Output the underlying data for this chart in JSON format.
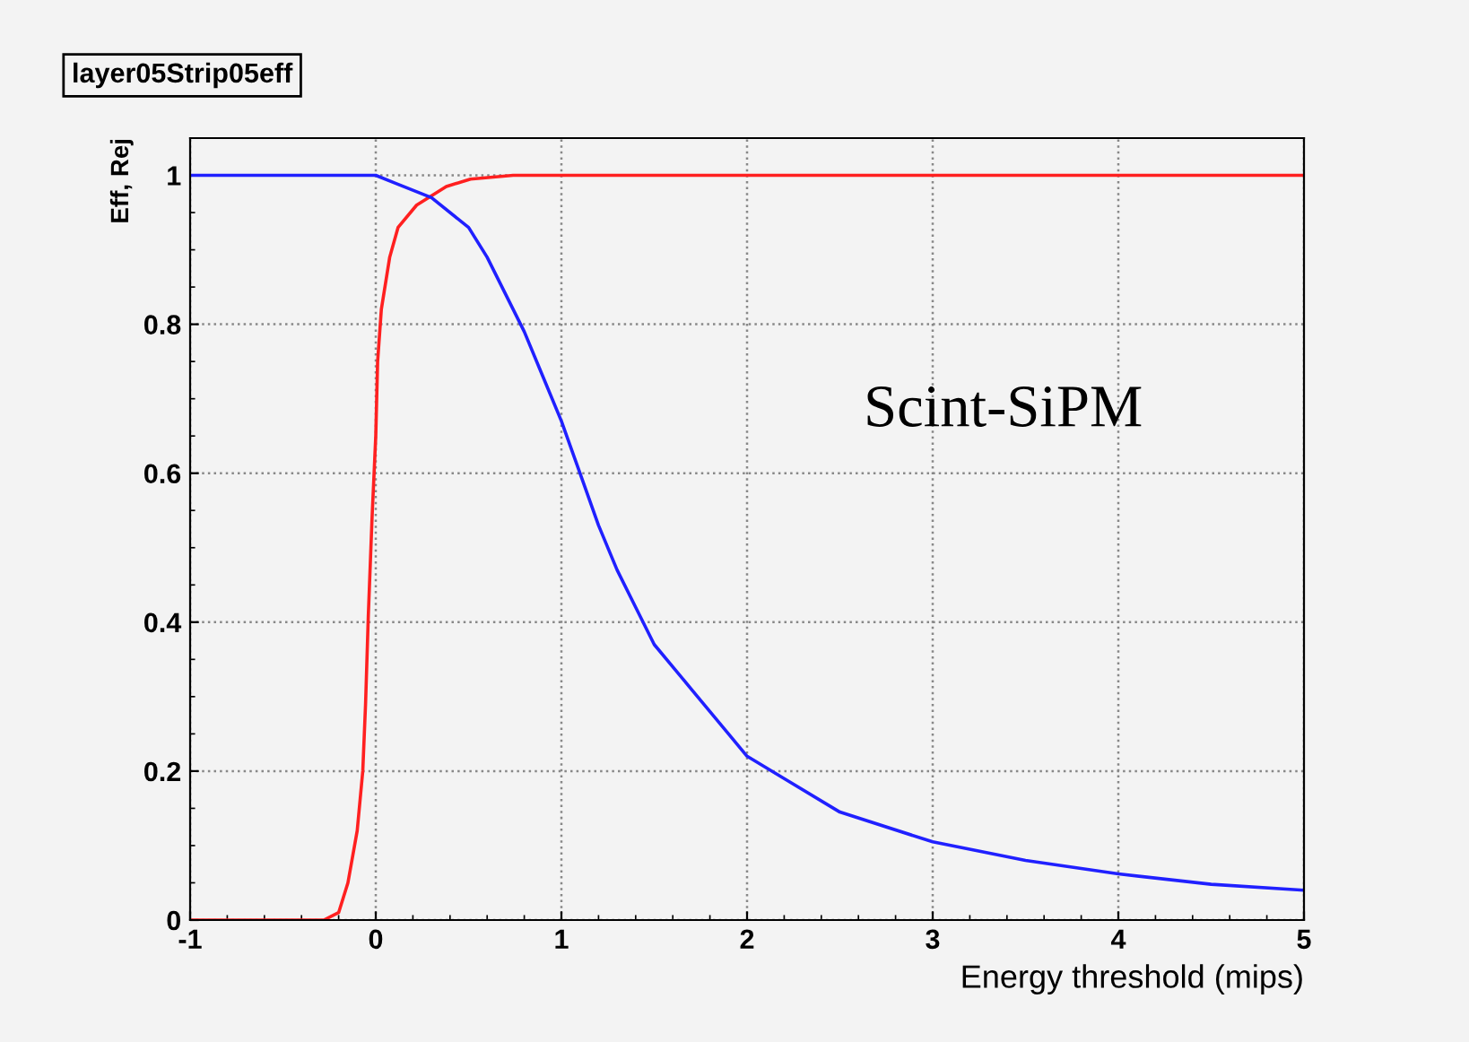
{
  "chart_data": {
    "type": "line",
    "title": "layer05Strip05eff",
    "xlabel": "Energy threshold (mips)",
    "ylabel": "Eff, Rej",
    "xlim": [
      -1,
      5
    ],
    "xticks": [
      -1,
      0,
      1,
      2,
      3,
      4,
      5
    ],
    "ylim": [
      0,
      1.05
    ],
    "yticks": [
      0,
      0.2,
      0.4,
      0.6,
      0.8,
      1
    ],
    "grid": true,
    "annotations": [
      "Scint-SiPM"
    ],
    "series": [
      {
        "color": "#ff2020",
        "x": [
          -1,
          -0.28,
          -0.2,
          -0.15,
          -0.1,
          -0.07,
          -0.055,
          -0.04,
          -0.02,
          0,
          0.01,
          0.03,
          0.075,
          0.12,
          0.22,
          0.38,
          0.51,
          0.74,
          5
        ],
        "values": [
          0,
          0,
          0.01,
          0.05,
          0.12,
          0.2,
          0.29,
          0.41,
          0.54,
          0.65,
          0.75,
          0.82,
          0.89,
          0.93,
          0.96,
          0.985,
          0.995,
          1,
          1
        ]
      },
      {
        "color": "#2020ff",
        "x": [
          -1,
          0,
          0.1,
          0.3,
          0.5,
          0.6,
          0.7,
          0.8,
          0.9,
          1.0,
          1.1,
          1.2,
          1.3,
          1.4,
          1.5,
          1.7,
          1.9,
          2,
          2.2,
          2.5,
          3,
          3.5,
          4,
          4.5,
          5
        ],
        "values": [
          1,
          1,
          0.99,
          0.97,
          0.93,
          0.89,
          0.84,
          0.79,
          0.73,
          0.67,
          0.6,
          0.53,
          0.47,
          0.42,
          0.37,
          0.31,
          0.25,
          0.22,
          0.19,
          0.145,
          0.105,
          0.08,
          0.062,
          0.048,
          0.04
        ]
      }
    ]
  }
}
